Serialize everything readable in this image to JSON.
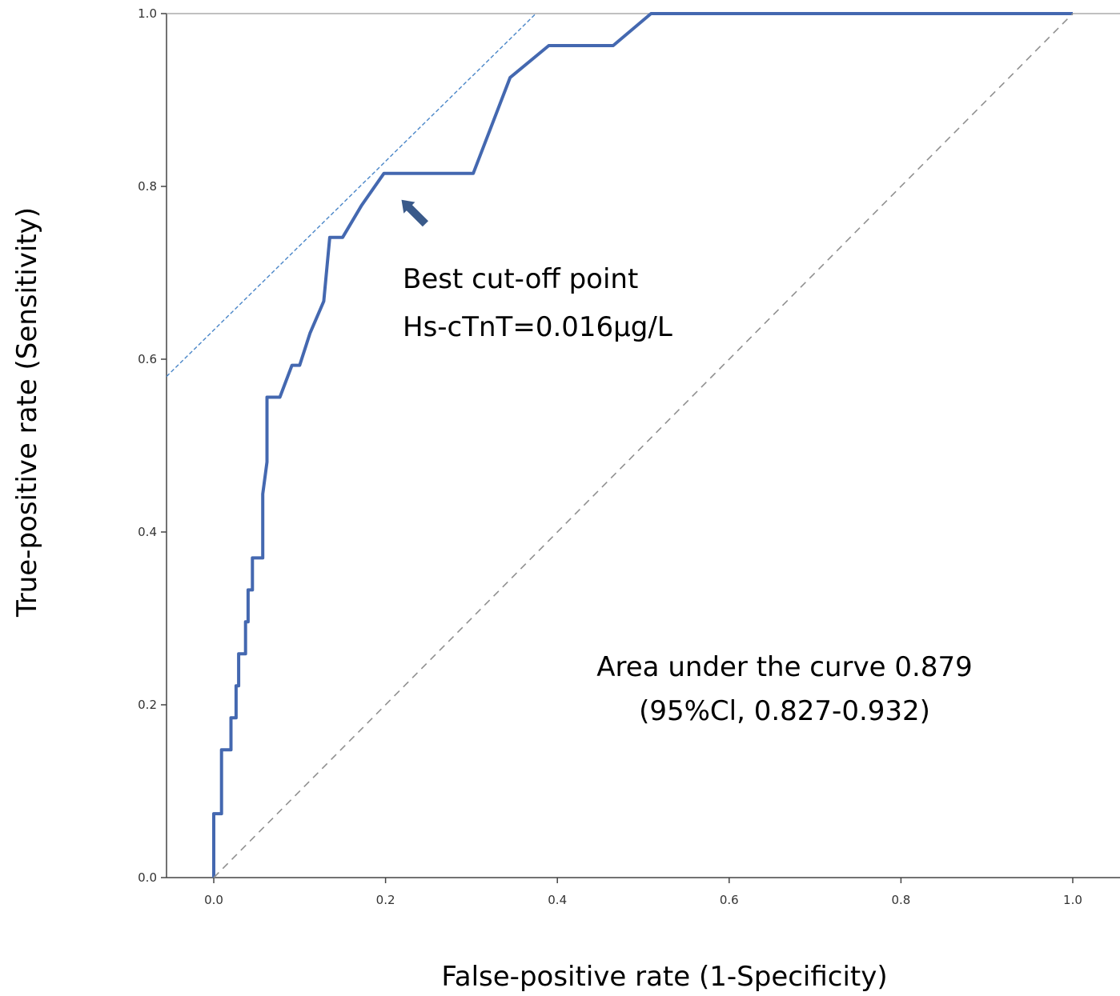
{
  "chart_data": {
    "type": "line",
    "xlabel": "False-positive rate (1-Specificity)",
    "ylabel": "True-positive rate (Sensitivity)",
    "xlim": [
      -0.055,
      1.055
    ],
    "ylim": [
      0,
      1.0
    ],
    "x_ticks": [
      "0.0",
      "0.2",
      "0.4",
      "0.6",
      "0.8",
      "1.0"
    ],
    "y_ticks": [
      "0.0",
      "0.2",
      "0.4",
      "0.6",
      "0.8",
      "1.0"
    ],
    "grid": false,
    "series": [
      {
        "color": "#4468B0",
        "style": "solid",
        "points": [
          [
            0.0,
            0.0
          ],
          [
            0.0,
            0.074
          ],
          [
            0.009,
            0.074
          ],
          [
            0.009,
            0.148
          ],
          [
            0.02,
            0.148
          ],
          [
            0.02,
            0.185
          ],
          [
            0.026,
            0.185
          ],
          [
            0.026,
            0.222
          ],
          [
            0.029,
            0.222
          ],
          [
            0.029,
            0.259
          ],
          [
            0.037,
            0.259
          ],
          [
            0.037,
            0.296
          ],
          [
            0.04,
            0.296
          ],
          [
            0.04,
            0.333
          ],
          [
            0.045,
            0.333
          ],
          [
            0.045,
            0.37
          ],
          [
            0.057,
            0.37
          ],
          [
            0.057,
            0.444
          ],
          [
            0.062,
            0.481
          ],
          [
            0.062,
            0.556
          ],
          [
            0.077,
            0.556
          ],
          [
            0.091,
            0.593
          ],
          [
            0.1,
            0.593
          ],
          [
            0.112,
            0.63
          ],
          [
            0.128,
            0.667
          ],
          [
            0.135,
            0.741
          ],
          [
            0.15,
            0.741
          ],
          [
            0.172,
            0.778
          ],
          [
            0.198,
            0.815
          ],
          [
            0.302,
            0.815
          ],
          [
            0.345,
            0.926
          ],
          [
            0.39,
            0.963
          ],
          [
            0.465,
            0.963
          ],
          [
            0.509,
            1.0
          ],
          [
            1.0,
            1.0
          ]
        ]
      },
      {
        "color": "#909090",
        "style": "dashed",
        "points": [
          [
            0,
            0
          ],
          [
            1,
            1
          ]
        ]
      }
    ],
    "tangent_line": {
      "color": "#4A86C8",
      "style": "dashed",
      "points": [
        [
          -0.055,
          0.58
        ],
        [
          0.375,
          1.0
        ]
      ]
    },
    "best_cutoff": {
      "x": 0.198,
      "y": 0.815,
      "arrow_color": "#3A5A8A"
    },
    "annotations": {
      "cutoff_line1": "Best cut-off point",
      "cutoff_line2": "Hs-cTnT=0.016μg/L",
      "auc_line1": "Area under the curve 0.879",
      "auc_line2": "(95%Cl, 0.827-0.932)"
    }
  }
}
